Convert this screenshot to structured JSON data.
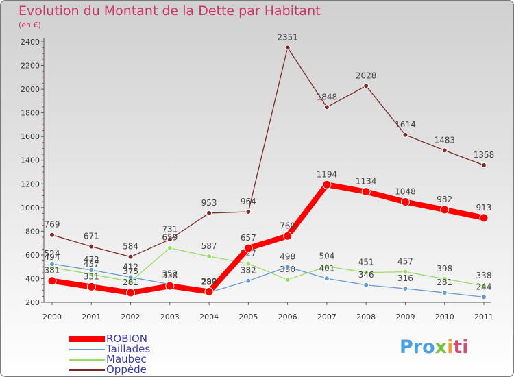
{
  "header": {
    "title": "Evolution du Montant de la Dette par Habitant",
    "unit": "(en €)"
  },
  "brand": {
    "logo_text": "Proxiti",
    "logo_parts": [
      "Pro",
      "x",
      "i",
      "ti"
    ]
  },
  "chart_data": {
    "type": "line",
    "title": "Evolution du Montant de la Dette par Habitant",
    "ylabel": "(en €)",
    "xlabel": "",
    "ylim": [
      200,
      2400
    ],
    "yticks": [
      200,
      400,
      600,
      800,
      1000,
      1200,
      1400,
      1600,
      1800,
      2000,
      2200,
      2400
    ],
    "categories": [
      "2000",
      "2001",
      "2002",
      "2003",
      "2004",
      "2005",
      "2006",
      "2007",
      "2008",
      "2009",
      "2010",
      "2011"
    ],
    "grid": false,
    "legend_position": "bottom-left",
    "series": [
      {
        "name": "Oppède",
        "color": "#7a2a2a",
        "values": [
          769,
          671,
          584,
          731,
          953,
          964,
          2351,
          1848,
          2028,
          1614,
          1483,
          1358
        ],
        "labels": [
          "769",
          "671",
          "584",
          "731",
          "953",
          "964",
          "2351",
          "1848",
          "2028",
          "1614",
          "1483",
          "1358"
        ]
      },
      {
        "name": "Maubec",
        "color": "#99dd66",
        "values": [
          494,
          437,
          375,
          659,
          587,
          527,
          390,
          504,
          451,
          457,
          398,
          338
        ],
        "labels": [
          "494",
          "437",
          "375",
          "659",
          "587",
          "527",
          "390",
          "504",
          "451",
          "457",
          "398",
          "338"
        ]
      },
      {
        "name": "Taillades",
        "color": "#6699cc",
        "values": [
          524,
          472,
          412,
          352,
          283,
          382,
          498,
          401,
          346,
          316,
          281,
          244
        ],
        "labels": [
          "524",
          "472",
          "412",
          "352",
          "283",
          "382",
          "498",
          "401",
          "346",
          "316",
          "281",
          "244"
        ]
      },
      {
        "name": "ROBION",
        "color": "#ff0000",
        "values": [
          381,
          331,
          281,
          338,
          290,
          657,
          760,
          1194,
          1134,
          1048,
          982,
          913
        ],
        "labels": [
          "381",
          "331",
          "281",
          "338",
          "290",
          "657",
          "760",
          "1194",
          "1134",
          "1048",
          "982",
          "913"
        ]
      }
    ],
    "legend": [
      "ROBION",
      "Taillades",
      "Maubec",
      "Oppède"
    ]
  }
}
